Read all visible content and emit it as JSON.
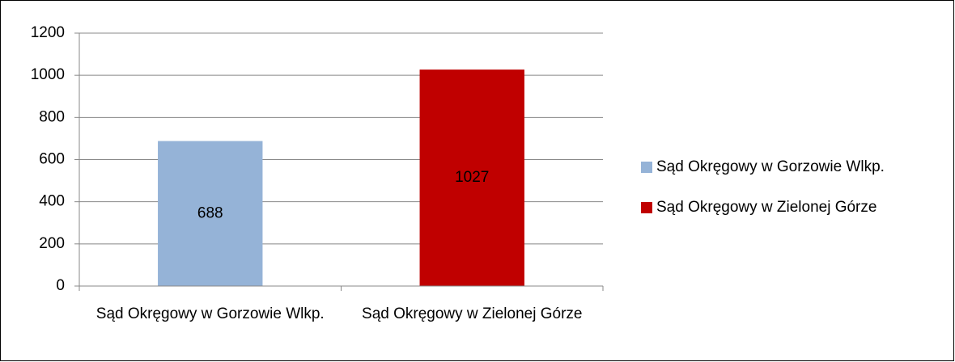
{
  "chart_data": {
    "type": "bar",
    "categories": [
      "Sąd Okręgowy w Gorzowie Wlkp.",
      "Sąd Okręgowy w Zielonej Górze"
    ],
    "values": [
      688,
      1027
    ],
    "colors": [
      "#95b3d7",
      "#c00000"
    ],
    "ylim": [
      0,
      1200
    ],
    "yticks": [
      0,
      200,
      400,
      600,
      800,
      1000,
      1200
    ],
    "grid": true,
    "legend": "right"
  }
}
